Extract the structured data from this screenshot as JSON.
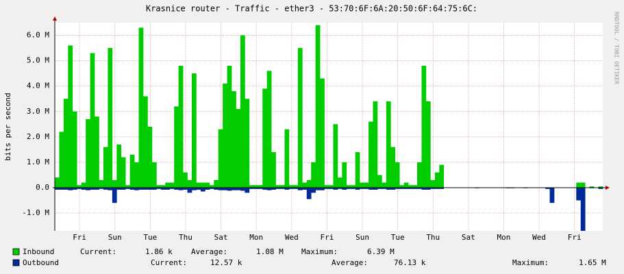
{
  "chart_data": {
    "type": "area",
    "title": "Krasnice router - Traffic - ether3 - 53:70:6F:6A:20:50:6F:64:75:6C:",
    "y_label": "bits per second",
    "watermark": "RRDTOOL / TOBI OETIKER",
    "xlim": [
      0,
      31
    ],
    "xticks": [
      {
        "value": 1.4,
        "label": "Fri"
      },
      {
        "value": 3.4,
        "label": "Sun"
      },
      {
        "value": 5.4,
        "label": "Tue"
      },
      {
        "value": 7.4,
        "label": "Thu"
      },
      {
        "value": 9.4,
        "label": "Sat"
      },
      {
        "value": 11.4,
        "label": "Mon"
      },
      {
        "value": 13.4,
        "label": "Wed"
      },
      {
        "value": 15.4,
        "label": "Fri"
      },
      {
        "value": 17.4,
        "label": "Sun"
      },
      {
        "value": 19.4,
        "label": "Tue"
      },
      {
        "value": 21.4,
        "label": "Thu"
      },
      {
        "value": 23.4,
        "label": "Sat"
      },
      {
        "value": 25.4,
        "label": "Mon"
      },
      {
        "value": 27.4,
        "label": "Wed"
      },
      {
        "value": 29.4,
        "label": "Fri"
      }
    ],
    "ylim": [
      -1.7,
      6.5
    ],
    "yticks": [
      {
        "value": 6,
        "label": "6.0 M"
      },
      {
        "value": 5,
        "label": "5.0 M"
      },
      {
        "value": 4,
        "label": "4.0 M"
      },
      {
        "value": 3,
        "label": "3.0 M"
      },
      {
        "value": 2,
        "label": "2.0 M"
      },
      {
        "value": 1,
        "label": "1.0 M"
      },
      {
        "value": 0,
        "label": "0.0"
      },
      {
        "value": -1,
        "label": "-1.0 M"
      }
    ],
    "grid": true,
    "series": [
      {
        "name": "Inbound",
        "color": "#00cc00",
        "stats": [
          {
            "label": "Current:",
            "value": "1.86 k"
          },
          {
            "label": "Average:",
            "value": "1.08 M"
          },
          {
            "label": "Maximum:",
            "value": "6.39 M"
          }
        ],
        "values": [
          0.4,
          2.2,
          3.5,
          5.6,
          3.0,
          0.1,
          0.2,
          2.7,
          5.3,
          2.8,
          0.3,
          1.6,
          5.5,
          0.3,
          1.7,
          1.2,
          0.1,
          1.3,
          1.0,
          6.3,
          3.6,
          2.4,
          1.0,
          0.1,
          0.1,
          0.2,
          0.2,
          3.2,
          4.8,
          0.6,
          0.3,
          4.5,
          0.2,
          0.2,
          0.2,
          0.1,
          0.3,
          2.3,
          4.1,
          4.8,
          3.8,
          3.1,
          6.0,
          3.5,
          0.1,
          0.1,
          0.1,
          3.9,
          4.6,
          1.4,
          0.1,
          0.1,
          2.3,
          0.1,
          0.1,
          5.5,
          0.2,
          0.3,
          1.0,
          6.4,
          4.3,
          0.1,
          0.1,
          2.5,
          0.4,
          1.0,
          0.1,
          0.1,
          1.4,
          0.2,
          0.2,
          2.6,
          3.4,
          0.5,
          0.2,
          3.4,
          1.6,
          1.0,
          0.1,
          0.2,
          0.1,
          0.1,
          1.0,
          4.8,
          3.4,
          0.3,
          0.6,
          0.9,
          null,
          null,
          null,
          null,
          null,
          null,
          null,
          0.01,
          null,
          null,
          null,
          null,
          null,
          null,
          0.01,
          0.01,
          null,
          null,
          0.01,
          null,
          null,
          null,
          0.01,
          null,
          null,
          null,
          null,
          null,
          null,
          null,
          0.2,
          0.2,
          null,
          0.05,
          null,
          0.05
        ]
      },
      {
        "name": "Outbound",
        "color": "#002a97",
        "stats": [
          {
            "label": "Current:",
            "value": "12.57 k"
          },
          {
            "label": "Average:",
            "value": "76.13 k"
          },
          {
            "label": "Maximum:",
            "value": "1.65 M"
          }
        ],
        "values": [
          -0.08,
          -0.08,
          -0.08,
          -0.1,
          -0.08,
          -0.05,
          -0.08,
          -0.1,
          -0.08,
          -0.08,
          -0.05,
          -0.08,
          -0.1,
          -0.6,
          -0.08,
          -0.08,
          -0.05,
          -0.08,
          -0.1,
          -0.08,
          -0.08,
          -0.08,
          -0.08,
          -0.05,
          -0.08,
          -0.08,
          -0.05,
          -0.08,
          -0.1,
          -0.08,
          -0.2,
          -0.1,
          -0.08,
          -0.15,
          -0.08,
          -0.05,
          -0.08,
          -0.1,
          -0.1,
          -0.12,
          -0.1,
          -0.1,
          -0.12,
          -0.2,
          -0.05,
          -0.05,
          -0.05,
          -0.08,
          -0.1,
          -0.08,
          -0.05,
          -0.05,
          -0.08,
          -0.05,
          -0.05,
          -0.1,
          -0.08,
          -0.45,
          -0.2,
          -0.1,
          -0.1,
          -0.05,
          -0.05,
          -0.08,
          -0.05,
          -0.08,
          -0.05,
          -0.05,
          -0.08,
          -0.05,
          -0.05,
          -0.08,
          -0.08,
          -0.05,
          -0.05,
          -0.08,
          -0.08,
          -0.05,
          -0.05,
          -0.05,
          -0.05,
          -0.05,
          -0.05,
          -0.08,
          -0.08,
          -0.05,
          -0.05,
          -0.05,
          null,
          null,
          null,
          null,
          null,
          null,
          null,
          -0.01,
          null,
          null,
          null,
          null,
          null,
          null,
          -0.02,
          -0.02,
          null,
          null,
          -0.01,
          null,
          null,
          null,
          null,
          -0.05,
          -0.6,
          null,
          null,
          null,
          null,
          null,
          -0.5,
          -1.7,
          null,
          -0.02,
          null,
          -0.05
        ]
      }
    ]
  }
}
